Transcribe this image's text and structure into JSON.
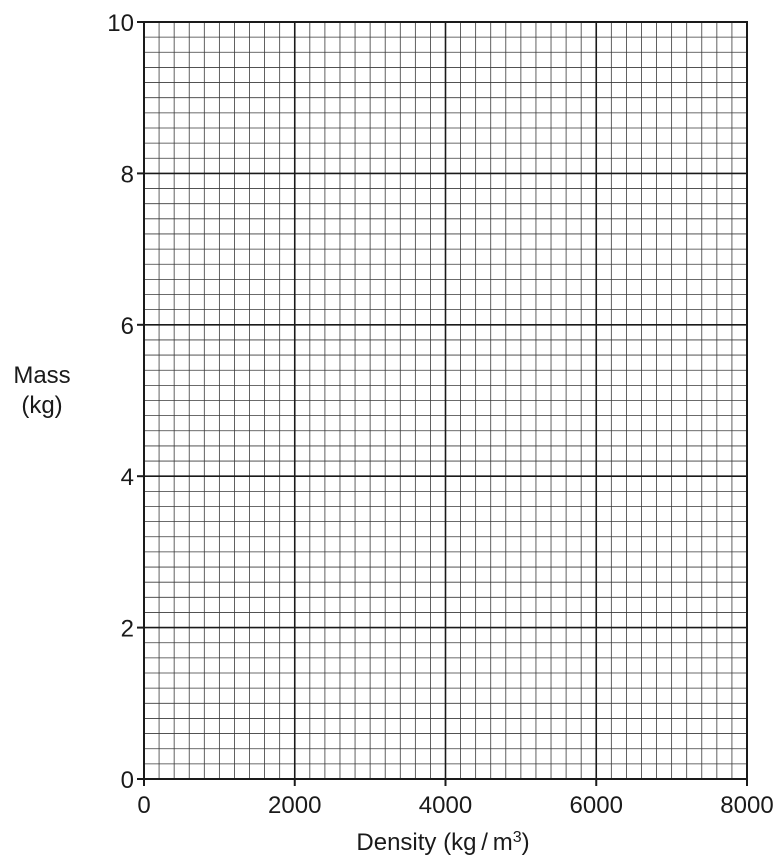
{
  "chart_data": {
    "type": "scatter",
    "title": "",
    "xlabel": "Density (kg / m",
    "xlabel_superscript": "3",
    "xlabel_suffix": ")",
    "ylabel_line1": "Mass",
    "ylabel_line2": "(kg)",
    "xlim": [
      0,
      8000
    ],
    "ylim": [
      0,
      10
    ],
    "x_major_step": 2000,
    "y_major_step": 2,
    "x_minor_divisions": 10,
    "y_minor_divisions": 10,
    "x_tick_labels": [
      "0",
      "2000",
      "4000",
      "6000",
      "8000"
    ],
    "y_tick_labels": [
      "0",
      "2",
      "4",
      "6",
      "8",
      "10"
    ],
    "grid": true,
    "series": []
  }
}
